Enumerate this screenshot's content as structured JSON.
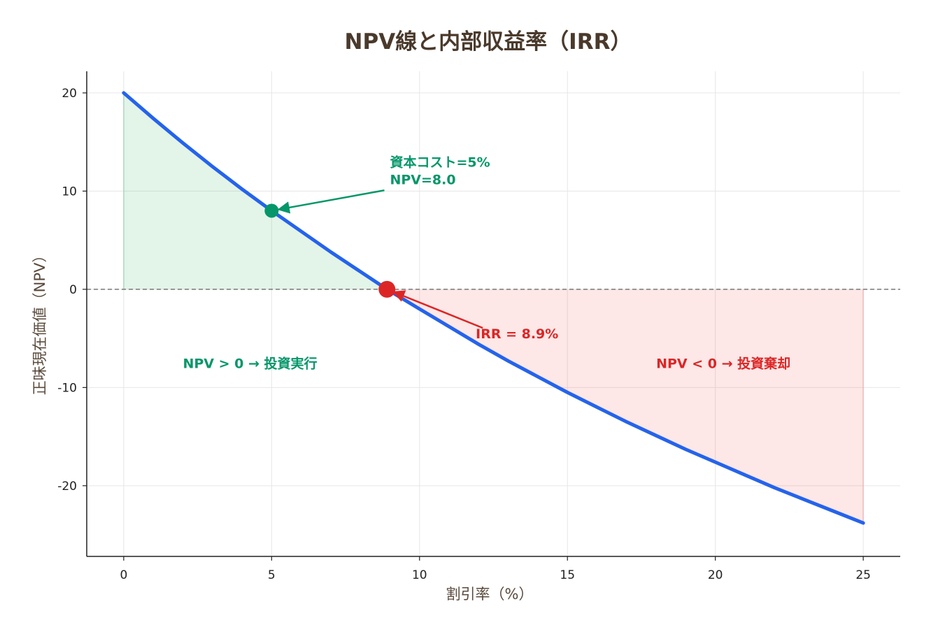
{
  "chart_data": {
    "type": "line",
    "title": "NPV線と内部収益率（IRR）",
    "xlabel": "割引率（%）",
    "ylabel": "正味現在価値（NPV）",
    "xlim": [
      -1.25,
      26.25
    ],
    "ylim": [
      -27.2,
      22.2
    ],
    "xticks": [
      0,
      5,
      10,
      15,
      20,
      25
    ],
    "xtick_labels": [
      "0",
      "5",
      "10",
      "15",
      "20",
      "25"
    ],
    "yticks": [
      -20,
      -10,
      0,
      10,
      20
    ],
    "ytick_labels": [
      "-20",
      "-10",
      "0",
      "10",
      "20"
    ],
    "grid": true,
    "series": [
      {
        "x": [
          0,
          1,
          2,
          3,
          4,
          5,
          6,
          7,
          8,
          8.9,
          10,
          11,
          12,
          13,
          14,
          15,
          16,
          17,
          18,
          19,
          20,
          21,
          22,
          23,
          24,
          25
        ],
        "y": [
          20,
          17.4,
          14.9,
          12.5,
          10.2,
          8.0,
          5.9,
          3.8,
          1.8,
          0,
          -2.0,
          -3.8,
          -5.6,
          -7.3,
          -8.9,
          -10.5,
          -12.0,
          -13.5,
          -14.9,
          -16.3,
          -17.6,
          -18.9,
          -20.2,
          -21.4,
          -22.6,
          -23.8
        ],
        "color": "#2563eb"
      }
    ],
    "shaded_regions": [
      {
        "from_x": 0,
        "to_x": 8.9,
        "side": "positive",
        "color": "#16a34a",
        "opacity": 0.12
      },
      {
        "from_x": 8.9,
        "to_x": 25,
        "side": "negative",
        "color": "#ef4444",
        "opacity": 0.13
      }
    ],
    "reference_line": {
      "y": 0,
      "style": "dashed",
      "color": "#777777"
    },
    "points": [
      {
        "name": "cost-of-capital-point",
        "x": 5,
        "y": 8.0,
        "color": "#059669"
      },
      {
        "name": "irr-point",
        "x": 8.9,
        "y": 0,
        "color": "#dc2626"
      }
    ],
    "annotations": [
      {
        "name": "cost-of-capital-annotation",
        "lines": [
          "資本コスト=5%",
          "NPV=8.0"
        ],
        "text_x": 9,
        "text_y": 12.5,
        "target_x": 5,
        "target_y": 8.0,
        "color": "#059669",
        "arrow": true
      },
      {
        "name": "irr-annotation",
        "lines": [
          "IRR = 8.9%"
        ],
        "text_x": 11.9,
        "text_y": -5.0,
        "target_x": 8.9,
        "target_y": 0,
        "color": "#dc2626",
        "arrow": true
      },
      {
        "name": "accept-region-label",
        "lines": [
          "NPV > 0 → 投資実行"
        ],
        "text_x": 2,
        "text_y": -8.0,
        "color": "#059669",
        "arrow": false
      },
      {
        "name": "reject-region-label",
        "lines": [
          "NPV < 0 → 投資棄却"
        ],
        "text_x": 18,
        "text_y": -8.0,
        "color": "#dc2626",
        "arrow": false
      }
    ]
  }
}
